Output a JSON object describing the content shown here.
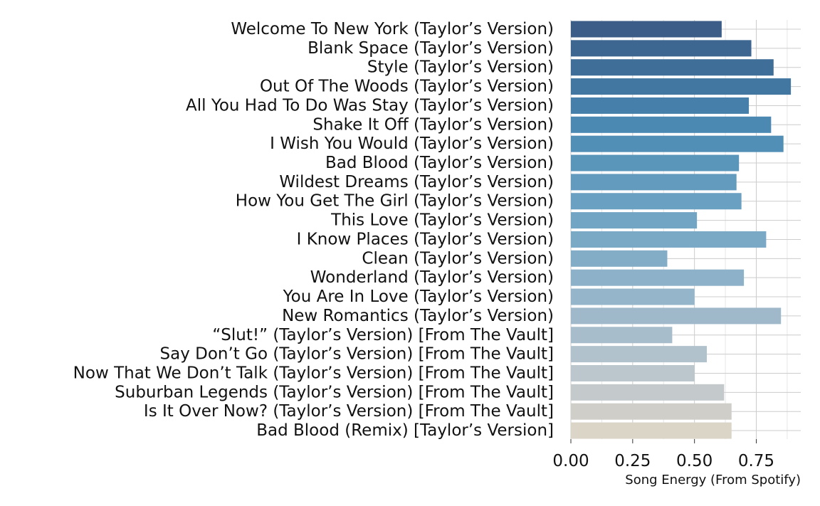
{
  "chart_data": {
    "type": "bar",
    "orientation": "horizontal",
    "categories": [
      "Welcome To New York (Taylor’s Version)",
      "Blank Space (Taylor’s Version)",
      "Style (Taylor’s Version)",
      "Out Of The Woods (Taylor’s Version)",
      "All You Had To Do Was Stay (Taylor’s Version)",
      "Shake It Off (Taylor’s Version)",
      "I Wish You Would (Taylor’s Version)",
      "Bad Blood (Taylor’s Version)",
      "Wildest Dreams (Taylor’s Version)",
      "How You Get The Girl (Taylor’s Version)",
      "This Love (Taylor’s Version)",
      "I Know Places (Taylor’s Version)",
      "Clean (Taylor’s Version)",
      "Wonderland (Taylor’s Version)",
      "You Are In Love (Taylor’s Version)",
      "New Romantics (Taylor’s Version)",
      "“Slut!” (Taylor’s Version) [From The Vault]",
      "Say Don’t Go (Taylor’s Version) [From The Vault]",
      "Now That We Don’t Talk (Taylor’s Version) [From The Vault]",
      "Suburban Legends (Taylor’s Version) [From The Vault]",
      "Is It Over Now? (Taylor’s Version) [From The Vault]",
      "Bad Blood (Remix) [Taylor’s Version]"
    ],
    "values": [
      0.61,
      0.73,
      0.82,
      0.89,
      0.72,
      0.81,
      0.86,
      0.68,
      0.67,
      0.69,
      0.51,
      0.79,
      0.39,
      0.7,
      0.5,
      0.85,
      0.41,
      0.55,
      0.5,
      0.62,
      0.65,
      0.65
    ],
    "xlabel": "Song Energy (From Spotify)",
    "ylabel": "",
    "title": "",
    "xlim": [
      0,
      0.93
    ],
    "xticks": [
      0,
      0.25,
      0.5,
      0.75
    ],
    "xtick_labels": [
      "0.00",
      "0.25",
      "0.50",
      "0.75"
    ],
    "grid": true,
    "legend": "none",
    "colors": [
      "#3b5d87",
      "#3d6690",
      "#3f6f99",
      "#4177a1",
      "#4680aa",
      "#4b88b2",
      "#528fb6",
      "#5a95ba",
      "#629bbe",
      "#6aa0c1",
      "#72a5c4",
      "#7aa9c6",
      "#83adc7",
      "#8cb1c9",
      "#95b5ca",
      "#9fb9cb",
      "#a8bdcc",
      "#b1c2cd",
      "#bbc6cd",
      "#c4cacc",
      "#cfcec8",
      "#dad5c7"
    ]
  }
}
